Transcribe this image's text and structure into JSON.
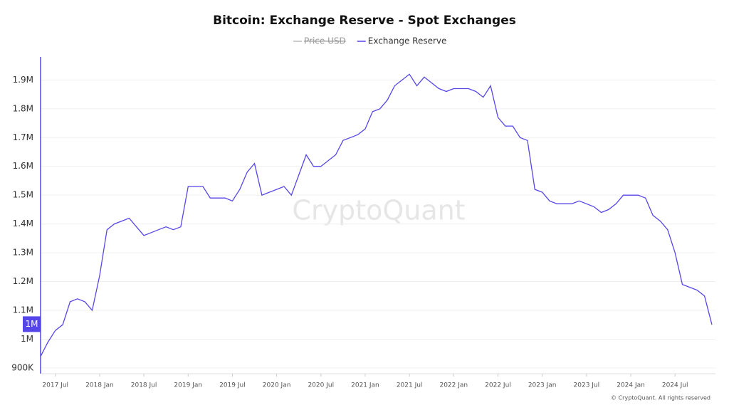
{
  "chart_data": {
    "type": "line",
    "title": "Bitcoin: Exchange Reserve - Spot Exchanges",
    "legend": [
      {
        "name": "Price USD",
        "color": "#9a9a9a",
        "hidden": true
      }
    ],
    "x": [
      "2017-05",
      "2017-06",
      "2017-07",
      "2017-08",
      "2017-09",
      "2017-10",
      "2017-11",
      "2017-12",
      "2018-01",
      "2018-02",
      "2018-03",
      "2018-04",
      "2018-05",
      "2018-06",
      "2018-07",
      "2018-08",
      "2018-09",
      "2018-10",
      "2018-11",
      "2018-12",
      "2019-01",
      "2019-02",
      "2019-03",
      "2019-04",
      "2019-05",
      "2019-06",
      "2019-07",
      "2019-08",
      "2019-09",
      "2019-10",
      "2019-11",
      "2019-12",
      "2020-01",
      "2020-02",
      "2020-03",
      "2020-04",
      "2020-05",
      "2020-06",
      "2020-07",
      "2020-08",
      "2020-09",
      "2020-10",
      "2020-11",
      "2020-12",
      "2021-01",
      "2021-02",
      "2021-03",
      "2021-04",
      "2021-05",
      "2021-06",
      "2021-07",
      "2021-08",
      "2021-09",
      "2021-10",
      "2021-11",
      "2021-12",
      "2022-01",
      "2022-02",
      "2022-03",
      "2022-04",
      "2022-05",
      "2022-06",
      "2022-07",
      "2022-08",
      "2022-09",
      "2022-10",
      "2022-11",
      "2022-12",
      "2023-01",
      "2023-02",
      "2023-03",
      "2023-04",
      "2023-05",
      "2023-06",
      "2023-07",
      "2023-08",
      "2023-09",
      "2023-10",
      "2023-11",
      "2023-12",
      "2024-01",
      "2024-02",
      "2024-03",
      "2024-04",
      "2024-05",
      "2024-06",
      "2024-07",
      "2024-08",
      "2024-09",
      "2024-10",
      "2024-11",
      "2024-12"
    ],
    "series": [
      {
        "name": "Exchange Reserve",
        "color": "#5546e8",
        "values": [
          940000,
          990000,
          1030000,
          1050000,
          1130000,
          1140000,
          1130000,
          1100000,
          1220000,
          1380000,
          1400000,
          1410000,
          1420000,
          1390000,
          1360000,
          1370000,
          1380000,
          1390000,
          1380000,
          1390000,
          1530000,
          1530000,
          1530000,
          1490000,
          1490000,
          1490000,
          1480000,
          1520000,
          1580000,
          1610000,
          1500000,
          1510000,
          1520000,
          1530000,
          1500000,
          1570000,
          1640000,
          1600000,
          1600000,
          1620000,
          1640000,
          1690000,
          1700000,
          1710000,
          1730000,
          1790000,
          1800000,
          1830000,
          1880000,
          1900000,
          1920000,
          1880000,
          1910000,
          1890000,
          1870000,
          1860000,
          1870000,
          1870000,
          1870000,
          1860000,
          1840000,
          1880000,
          1770000,
          1740000,
          1740000,
          1700000,
          1690000,
          1520000,
          1510000,
          1480000,
          1470000,
          1470000,
          1470000,
          1480000,
          1470000,
          1460000,
          1440000,
          1450000,
          1470000,
          1500000,
          1500000,
          1500000,
          1490000,
          1430000,
          1410000,
          1380000,
          1300000,
          1190000,
          1180000,
          1170000,
          1150000,
          1050000
        ]
      }
    ],
    "current_value": {
      "value": 1052000,
      "label": "1M"
    },
    "xlim": [
      "2017-05",
      "2024-12"
    ],
    "xticks": [
      {
        "value": "2017-07",
        "label": "2017 Jul"
      },
      {
        "value": "2018-01",
        "label": "2018 Jan"
      },
      {
        "value": "2018-07",
        "label": "2018 Jul"
      },
      {
        "value": "2019-01",
        "label": "2019 Jan"
      },
      {
        "value": "2019-07",
        "label": "2019 Jul"
      },
      {
        "value": "2020-01",
        "label": "2020 Jan"
      },
      {
        "value": "2020-07",
        "label": "2020 Jul"
      },
      {
        "value": "2021-01",
        "label": "2021 Jan"
      },
      {
        "value": "2021-07",
        "label": "2021 Jul"
      },
      {
        "value": "2022-01",
        "label": "2022 Jan"
      },
      {
        "value": "2022-07",
        "label": "2022 Jul"
      },
      {
        "value": "2023-01",
        "label": "2023 Jan"
      },
      {
        "value": "2023-07",
        "label": "2023 Jul"
      },
      {
        "value": "2024-01",
        "label": "2024 Jan"
      },
      {
        "value": "2024-07",
        "label": "2024 Jul"
      }
    ],
    "ylim": [
      880000,
      1980000
    ],
    "yticks": [
      {
        "value": 900000,
        "label": "900K"
      },
      {
        "value": 1000000,
        "label": "1M"
      },
      {
        "value": 1100000,
        "label": "1.1M"
      },
      {
        "value": 1200000,
        "label": "1.2M"
      },
      {
        "value": 1300000,
        "label": "1.3M"
      },
      {
        "value": 1400000,
        "label": "1.4M"
      },
      {
        "value": 1500000,
        "label": "1.5M"
      },
      {
        "value": 1600000,
        "label": "1.6M"
      },
      {
        "value": 1700000,
        "label": "1.7M"
      },
      {
        "value": 1800000,
        "label": "1.8M"
      },
      {
        "value": 1900000,
        "label": "1.9M"
      }
    ],
    "grid": true,
    "watermark": "CryptoQuant",
    "footer": "© CryptoQuant. All rights reserved"
  }
}
